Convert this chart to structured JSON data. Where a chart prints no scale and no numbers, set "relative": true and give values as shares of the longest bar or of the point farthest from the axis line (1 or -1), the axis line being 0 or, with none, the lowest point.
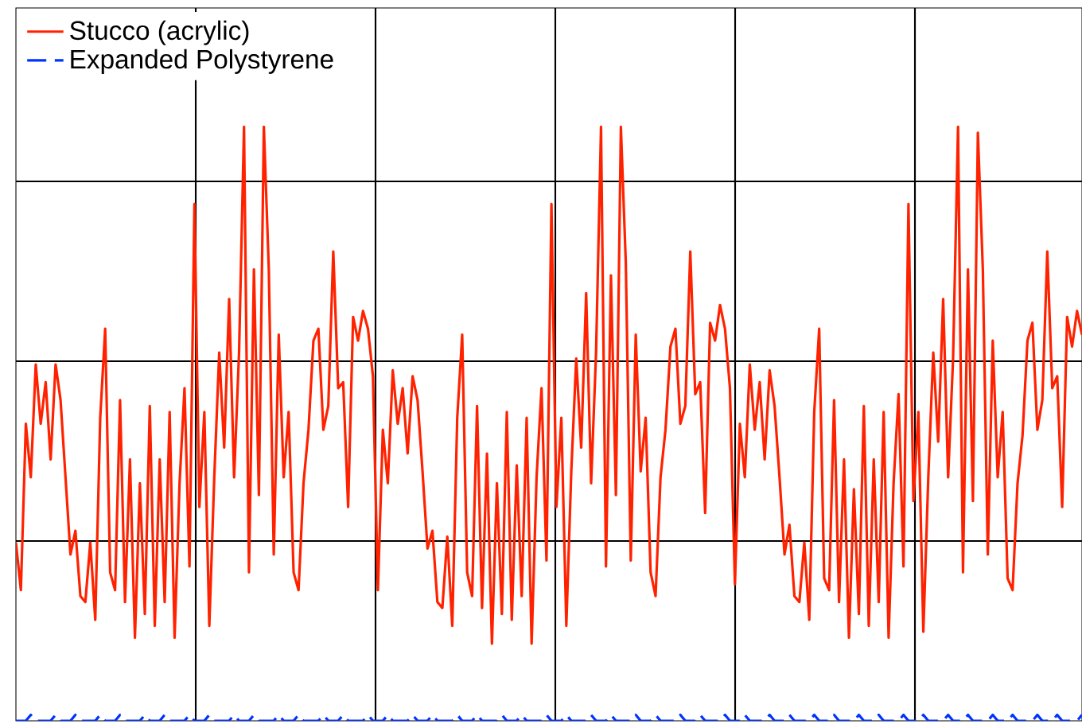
{
  "chart_data": {
    "type": "line",
    "relative": true,
    "grid": true,
    "legend": "top left",
    "categories": [
      null,
      null,
      null,
      null,
      null,
      null,
      null,
      null,
      null,
      null,
      null,
      null,
      null,
      null,
      null,
      null,
      null,
      null,
      null,
      null,
      null,
      null,
      null,
      null,
      null,
      null,
      null,
      null,
      null,
      null,
      null,
      null,
      null,
      null,
      null,
      null,
      null,
      null,
      null,
      null,
      null,
      null,
      null,
      null,
      null,
      null,
      null,
      null,
      null,
      null,
      null,
      null,
      null,
      null,
      null,
      null,
      null,
      null,
      null,
      null,
      null,
      null,
      null,
      null,
      null,
      null,
      null,
      null,
      null,
      null,
      null,
      null,
      null,
      null,
      null,
      null,
      null,
      null,
      null,
      null,
      null,
      null,
      null,
      null,
      null,
      null,
      null,
      null,
      null,
      null,
      null,
      null,
      null,
      null,
      null,
      null,
      null,
      null,
      null,
      null,
      null,
      null,
      null,
      null,
      null,
      null,
      null,
      null,
      null,
      null,
      null,
      null,
      null,
      null,
      null,
      null,
      null,
      null,
      null,
      null,
      null,
      null,
      null,
      null,
      null,
      null,
      null,
      null,
      null,
      null,
      null,
      null,
      null,
      null,
      null,
      null,
      null,
      null,
      null,
      null,
      null,
      null,
      null,
      null,
      null,
      null,
      null,
      null,
      null,
      null,
      null,
      null,
      null,
      null,
      null,
      null,
      null,
      null,
      null,
      null,
      null,
      null,
      null,
      null,
      null,
      null,
      null,
      null,
      null,
      null,
      null,
      null,
      null,
      null,
      null,
      null,
      null,
      null,
      null,
      null,
      null,
      null,
      null,
      null,
      null,
      null,
      null,
      null,
      null,
      null,
      null,
      null,
      null,
      null,
      null,
      null,
      null,
      null,
      null,
      null,
      null,
      null,
      null,
      null,
      null,
      null,
      null,
      null,
      null,
      null,
      null,
      null,
      null,
      null,
      null,
      null
    ],
    "series": [
      {
        "name": "Stucco (acrylic)",
        "color": "#ff2200",
        "line_style": "solid",
        "values": [
          0.3,
          0.22,
          0.5,
          0.41,
          0.6,
          0.5,
          0.57,
          0.44,
          0.6,
          0.54,
          0.41,
          0.28,
          0.32,
          0.21,
          0.2,
          0.3,
          0.17,
          0.51,
          0.66,
          0.25,
          0.22,
          0.54,
          0.2,
          0.44,
          0.14,
          0.4,
          0.18,
          0.53,
          0.16,
          0.44,
          0.2,
          0.52,
          0.14,
          0.4,
          0.56,
          0.26,
          0.87,
          0.36,
          0.52,
          0.16,
          0.41,
          0.62,
          0.46,
          0.71,
          0.41,
          0.62,
          1.0,
          0.25,
          0.76,
          0.38,
          1.0,
          0.76,
          0.28,
          0.65,
          0.41,
          0.52,
          0.25,
          0.22,
          0.4,
          0.49,
          0.64,
          0.66,
          0.49,
          0.53,
          0.79,
          0.56,
          0.57,
          0.36,
          0.68,
          0.64,
          0.69,
          0.66,
          0.58,
          0.22,
          0.49,
          0.4,
          0.59,
          0.5,
          0.56,
          0.45,
          0.58,
          0.54,
          0.42,
          0.29,
          0.32,
          0.2,
          0.19,
          0.31,
          0.16,
          0.51,
          0.65,
          0.25,
          0.21,
          0.53,
          0.19,
          0.45,
          0.13,
          0.4,
          0.18,
          0.52,
          0.17,
          0.43,
          0.21,
          0.51,
          0.13,
          0.41,
          0.56,
          0.27,
          0.87,
          0.36,
          0.51,
          0.16,
          0.42,
          0.61,
          0.46,
          0.72,
          0.4,
          0.62,
          1.0,
          0.26,
          0.75,
          0.38,
          1.0,
          0.77,
          0.27,
          0.65,
          0.42,
          0.51,
          0.25,
          0.21,
          0.41,
          0.49,
          0.63,
          0.66,
          0.5,
          0.53,
          0.79,
          0.55,
          0.57,
          0.35,
          0.67,
          0.64,
          0.7,
          0.66,
          0.56,
          0.23,
          0.5,
          0.41,
          0.6,
          0.49,
          0.57,
          0.44,
          0.59,
          0.53,
          0.41,
          0.28,
          0.33,
          0.21,
          0.2,
          0.3,
          0.17,
          0.52,
          0.66,
          0.24,
          0.22,
          0.54,
          0.2,
          0.44,
          0.14,
          0.39,
          0.18,
          0.53,
          0.16,
          0.44,
          0.2,
          0.52,
          0.14,
          0.4,
          0.55,
          0.26,
          0.87,
          0.37,
          0.52,
          0.15,
          0.41,
          0.62,
          0.47,
          0.71,
          0.41,
          0.61,
          1.0,
          0.25,
          0.76,
          0.37,
          0.99,
          0.76,
          0.28,
          0.64,
          0.41,
          0.52,
          0.24,
          0.22,
          0.4,
          0.48,
          0.64,
          0.67,
          0.49,
          0.54,
          0.79,
          0.56,
          0.58,
          0.36,
          0.68,
          0.63,
          0.69,
          0.65
        ]
      },
      {
        "name": "Expanded Polystyrene",
        "color": "#0033ff",
        "line_style": "dashed",
        "values": [
          0,
          0,
          0,
          0.01,
          0,
          0,
          0,
          0,
          0.01,
          0,
          0,
          0,
          0.01,
          0,
          0,
          0,
          0,
          0.01,
          0,
          0,
          0,
          0.01,
          0,
          0,
          0,
          0,
          0.01,
          0,
          0,
          0,
          0.01,
          0,
          0,
          0,
          0,
          0.01,
          0,
          0,
          0,
          0.01,
          0,
          0,
          0,
          0,
          0.01,
          0,
          0,
          0,
          0.01,
          0,
          0,
          0,
          0,
          0.01,
          0,
          0,
          0,
          0.01,
          0,
          0,
          0,
          0,
          0.01,
          0,
          0,
          0,
          0.01,
          0,
          0,
          0,
          0,
          0.01,
          0,
          0,
          0,
          0.01,
          0,
          0,
          0,
          0,
          0.01,
          0,
          0,
          0,
          0.01,
          0,
          0,
          0,
          0,
          0.01,
          0,
          0,
          0,
          0.01,
          0,
          0,
          0,
          0,
          0.01,
          0,
          0,
          0,
          0.01,
          0,
          0,
          0,
          0,
          0.01,
          0,
          0,
          0,
          0.01,
          0,
          0,
          0,
          0,
          0.01,
          0,
          0,
          0,
          0.01,
          0,
          0,
          0,
          0,
          0.01,
          0,
          0,
          0,
          0.01,
          0,
          0,
          0,
          0,
          0.01,
          0,
          0,
          0,
          0.01,
          0,
          0,
          0,
          0,
          0.01,
          0,
          0,
          0,
          0.01,
          0,
          0,
          0,
          0,
          0.01,
          0,
          0,
          0,
          0.01,
          0,
          0,
          0,
          0,
          0.01,
          0,
          0,
          0,
          0.01,
          0,
          0,
          0,
          0,
          0.01,
          0,
          0,
          0,
          0.01,
          0,
          0,
          0,
          0,
          0.01,
          0,
          0,
          0,
          0.01,
          0,
          0,
          0,
          0,
          0.01,
          0,
          0,
          0,
          0.01,
          0,
          0,
          0,
          0,
          0.01,
          0,
          0,
          0,
          0.01,
          0,
          0,
          0,
          0,
          0.01,
          0,
          0,
          0,
          0.01,
          0,
          0,
          0,
          0,
          0.01
        ]
      }
    ]
  }
}
